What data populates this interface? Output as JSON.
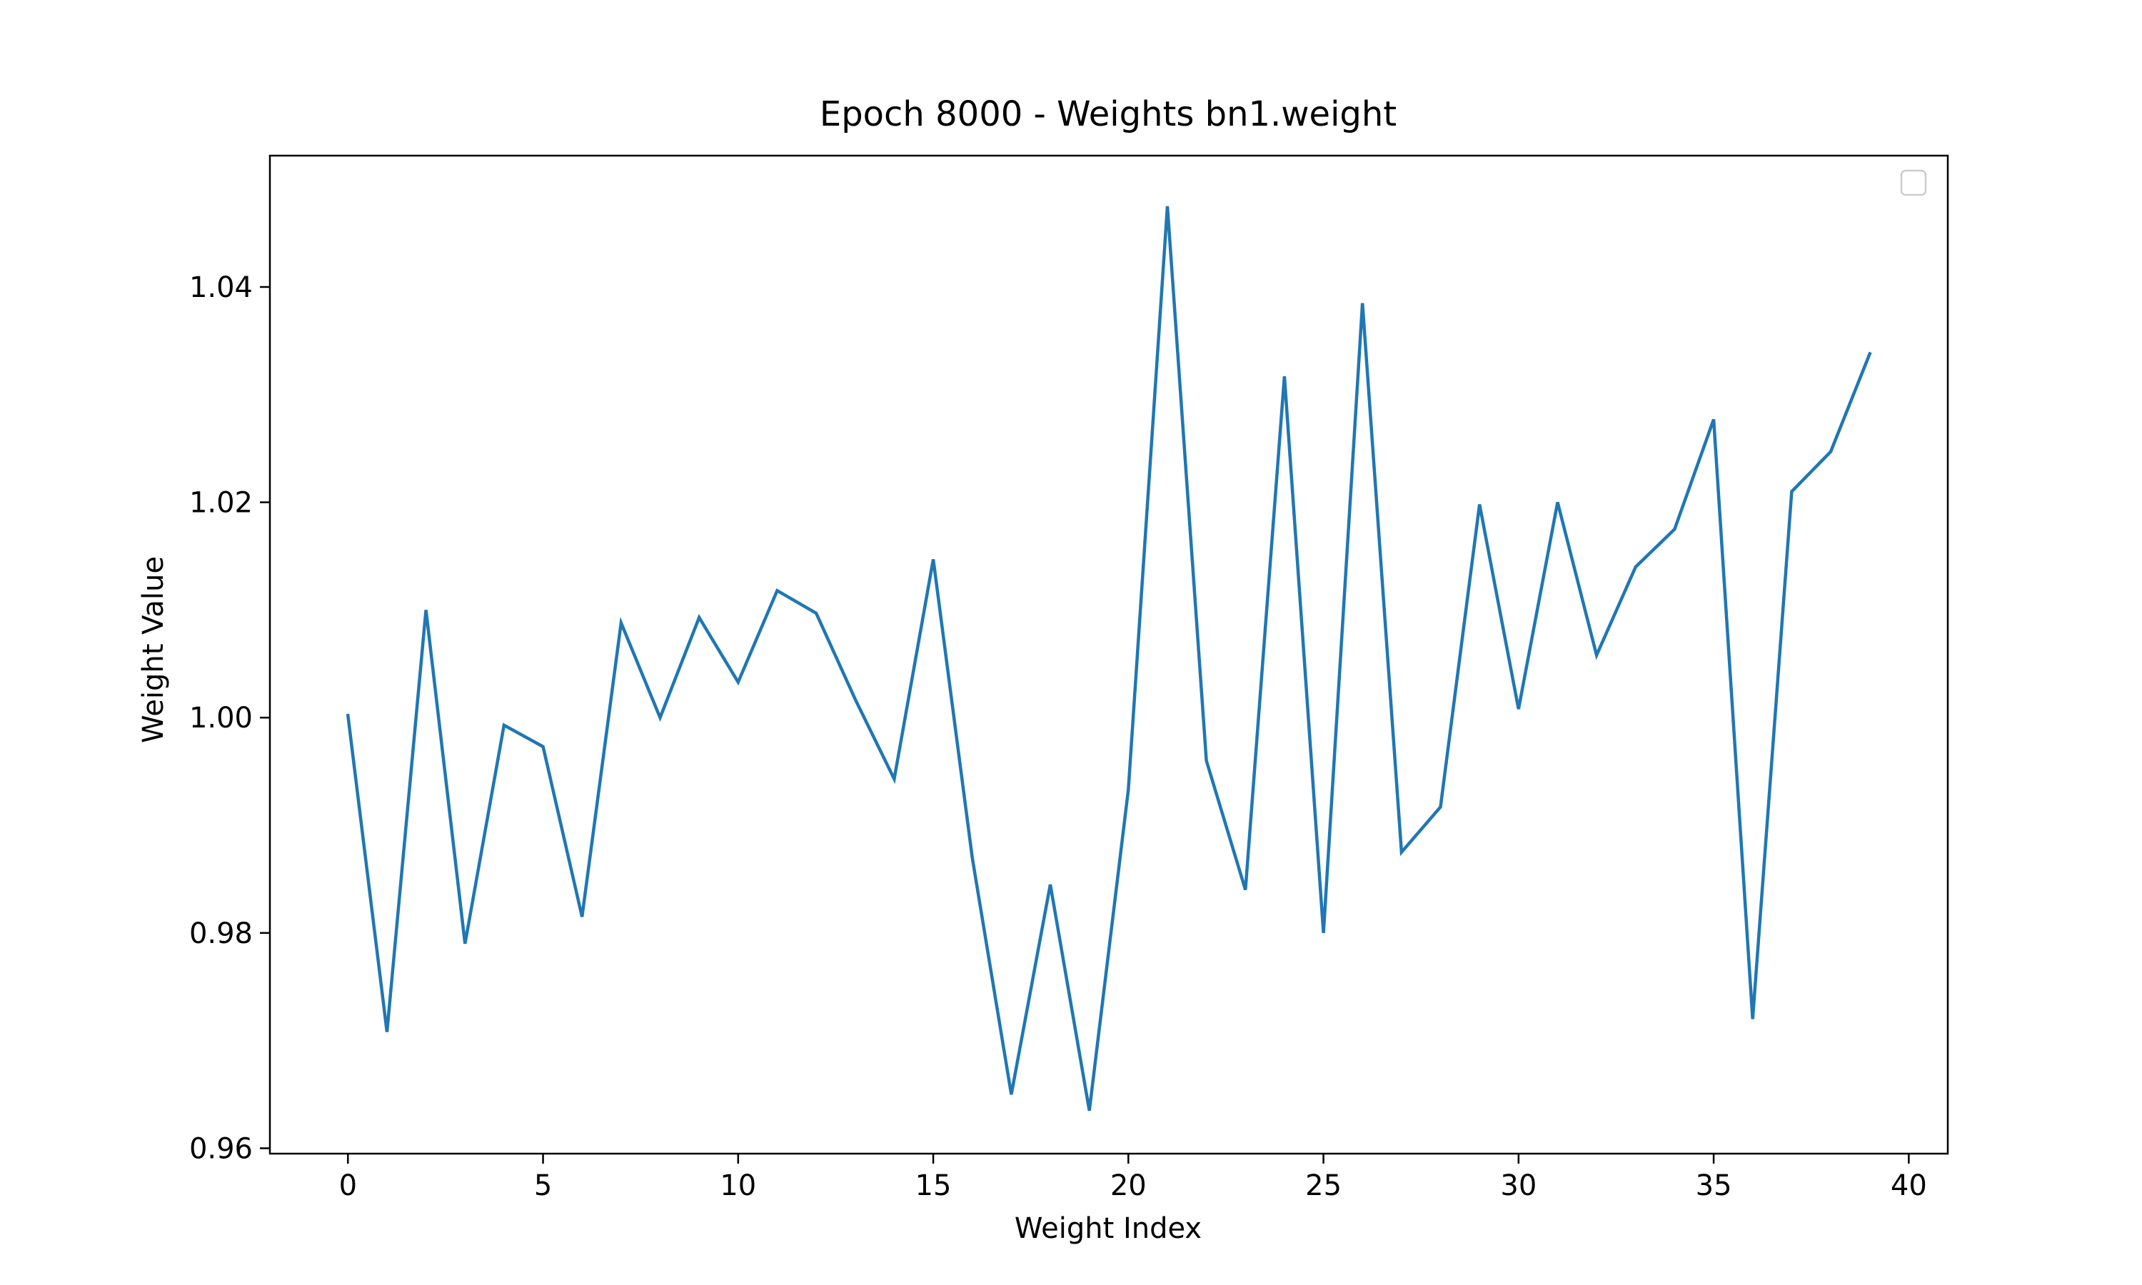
{
  "chart_data": {
    "type": "line",
    "title": "Epoch 8000 - Weights bn1.weight",
    "xlabel": "Weight Index",
    "ylabel": "Weight Value",
    "xlim": [
      -2,
      41
    ],
    "ylim": [
      0.9595,
      1.0522
    ],
    "xticks": [
      0,
      5,
      10,
      15,
      20,
      25,
      30,
      35,
      40
    ],
    "yticks": [
      0.96,
      0.98,
      1.0,
      1.02,
      1.04
    ],
    "ytick_labels": [
      "0.96",
      "0.98",
      "1.00",
      "1.02",
      "1.04"
    ],
    "grid": false,
    "legend": {
      "placement": "upper-right",
      "entries": []
    },
    "series": [
      {
        "color": "#1f77b4",
        "x": [
          0,
          1,
          2,
          3,
          4,
          5,
          6,
          7,
          8,
          9,
          10,
          11,
          12,
          13,
          14,
          15,
          16,
          17,
          18,
          19,
          20,
          21,
          22,
          23,
          24,
          25,
          26,
          27,
          28,
          29,
          30,
          31,
          32,
          33,
          34,
          35,
          36,
          37,
          38,
          39
        ],
        "values": [
          1.0002,
          0.9708,
          1.01,
          0.979,
          0.9993,
          0.9973,
          0.9815,
          1.0088,
          1.0,
          1.0093,
          1.0033,
          1.0118,
          1.0097,
          1.0017,
          0.9943,
          1.0147,
          0.987,
          0.965,
          0.9845,
          0.9635,
          0.9933,
          1.0475,
          0.996,
          0.984,
          1.0317,
          0.98,
          1.0385,
          0.9875,
          0.9917,
          1.0198,
          1.0008,
          1.02,
          1.0058,
          1.014,
          1.0175,
          1.0277,
          0.972,
          1.021,
          1.0247,
          1.0338
        ]
      }
    ]
  }
}
